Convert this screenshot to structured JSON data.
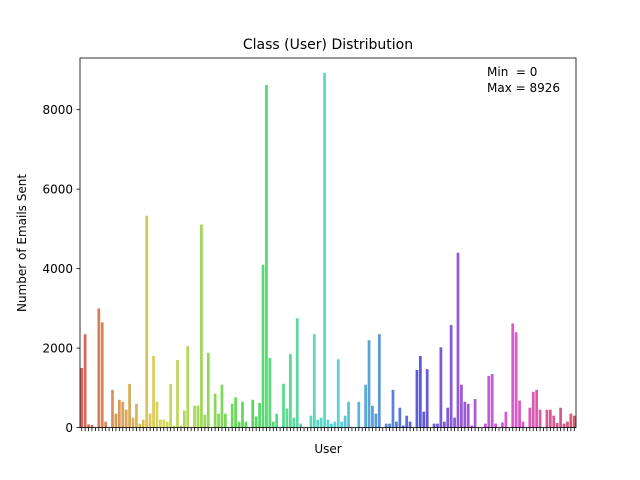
{
  "chart_data": {
    "type": "bar",
    "title": "Class (User) Distribution",
    "xlabel": "User",
    "ylabel": "Number of Emails Sent",
    "ylim": [
      0,
      9300
    ],
    "yticks": [
      0,
      2000,
      4000,
      6000,
      8000
    ],
    "annotation_lines": [
      "Min  = 0",
      "Max = 8926"
    ],
    "annotation_position": "top-right",
    "x_tick_labels_visible": false,
    "grid": false,
    "legend": "none",
    "values": [
      1500,
      2350,
      80,
      70,
      0,
      3000,
      2650,
      150,
      0,
      950,
      350,
      700,
      650,
      450,
      1100,
      250,
      600,
      100,
      200,
      5330,
      350,
      1800,
      650,
      200,
      200,
      150,
      1100,
      50,
      1700,
      50,
      430,
      2050,
      0,
      550,
      550,
      5110,
      320,
      1880,
      0,
      850,
      350,
      1080,
      350,
      0,
      600,
      760,
      150,
      650,
      150,
      0,
      700,
      280,
      620,
      4100,
      8620,
      1750,
      150,
      350,
      0,
      1100,
      480,
      1850,
      250,
      2750,
      100,
      0,
      0,
      300,
      2350,
      200,
      250,
      8926,
      200,
      100,
      150,
      1720,
      150,
      300,
      650,
      0,
      0,
      650,
      0,
      1080,
      2200,
      550,
      350,
      2350,
      0,
      100,
      100,
      950,
      150,
      500,
      50,
      300,
      150,
      0,
      1450,
      1800,
      400,
      1470,
      0,
      100,
      100,
      2020,
      150,
      500,
      2580,
      250,
      4400,
      1080,
      650,
      600,
      50,
      720,
      0,
      0,
      100,
      1300,
      1350,
      100,
      0,
      130,
      400,
      0,
      2620,
      2400,
      680,
      150,
      0,
      500,
      900,
      950,
      450,
      0,
      450,
      450,
      300,
      120,
      500,
      100,
      150,
      350,
      300
    ]
  }
}
